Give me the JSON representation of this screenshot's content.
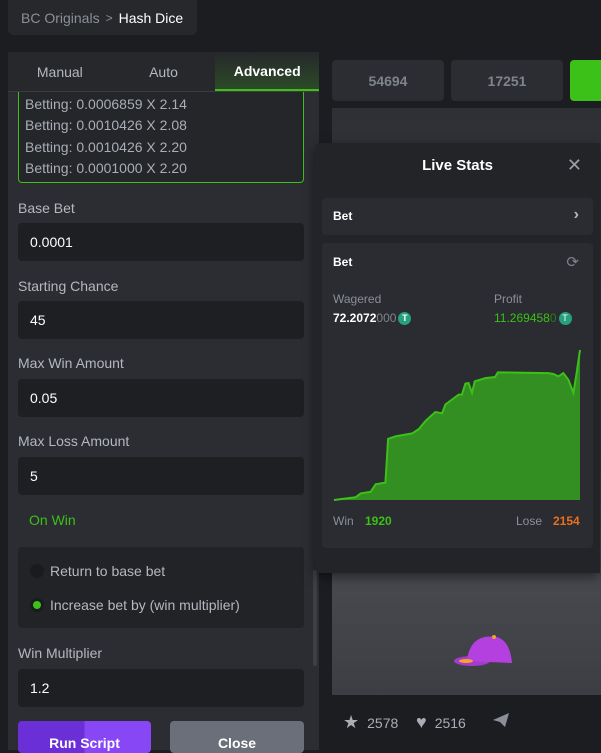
{
  "breadcrumb": {
    "parent": "BC Originals",
    "current": "Hash Dice"
  },
  "tabs": [
    {
      "label": "Manual"
    },
    {
      "label": "Auto"
    },
    {
      "label": "Advanced",
      "active": true
    }
  ],
  "log": [
    "Betting: 0.0006859 X 2.14",
    "Betting: 0.0010426 X 2.08",
    "Betting: 0.0010426 X 2.20",
    "Betting: 0.0001000 X 2.20"
  ],
  "fields": {
    "base_bet": {
      "label": "Base Bet",
      "value": "0.0001"
    },
    "starting_chance": {
      "label": "Starting Chance",
      "value": "45"
    },
    "max_win": {
      "label": "Max Win Amount",
      "value": "0.05"
    },
    "max_loss": {
      "label": "Max Loss Amount",
      "value": "5"
    },
    "win_multiplier": {
      "label": "Win Multiplier",
      "value": "1.2"
    }
  },
  "on_win": {
    "title": "On Win",
    "options": [
      "Return to base bet",
      "Increase bet by (win multiplier)"
    ],
    "selected": 1
  },
  "buttons": {
    "run": "Run Script",
    "close": "Close"
  },
  "top_values": [
    "54694",
    "17251"
  ],
  "live_stats": {
    "title": "Live Stats",
    "select": "Bet",
    "card_title": "Bet",
    "wagered_label": "Wagered",
    "wagered_main": "72.2072",
    "wagered_tail": "000",
    "profit_label": "Profit",
    "profit_main": "11.269458",
    "profit_tail": "0",
    "win_label": "Win",
    "win": "1920",
    "lose_label": "Lose",
    "lose": "2154"
  },
  "colors": {
    "accent": "#3bc117",
    "lose": "#e8701a",
    "run_button": "#7b3ff2"
  },
  "chart_data": {
    "type": "area",
    "series": [
      {
        "values": [
          [
            0,
            0
          ],
          [
            8.8,
            1.8
          ],
          [
            10.8,
            4.4
          ],
          [
            14.9,
            5.5
          ],
          [
            16.9,
            10.5
          ],
          [
            20.9,
            11.6
          ],
          [
            22,
            40.7
          ],
          [
            25,
            42.4
          ],
          [
            31.8,
            44.4
          ],
          [
            34.5,
            47.3
          ],
          [
            37.2,
            52.7
          ],
          [
            41.2,
            58.7
          ],
          [
            43.9,
            57.8
          ],
          [
            45.3,
            63.7
          ],
          [
            48,
            67
          ],
          [
            50.7,
            70.3
          ],
          [
            52,
            70.3
          ],
          [
            53.4,
            77.6
          ],
          [
            54.7,
            78
          ],
          [
            56.1,
            71.4
          ],
          [
            57.2,
            79.1
          ],
          [
            61.5,
            81.3
          ],
          [
            65.5,
            82
          ],
          [
            66.6,
            85.1
          ],
          [
            87.2,
            84.6
          ],
          [
            89.2,
            84
          ],
          [
            91.2,
            82.4
          ],
          [
            93.2,
            84.6
          ],
          [
            95.3,
            80.2
          ],
          [
            97.3,
            71.4
          ],
          [
            98.6,
            84.6
          ],
          [
            100,
            100
          ]
        ]
      }
    ],
    "grid": false
  },
  "footer": {
    "favorites": "2578",
    "likes": "2516"
  }
}
